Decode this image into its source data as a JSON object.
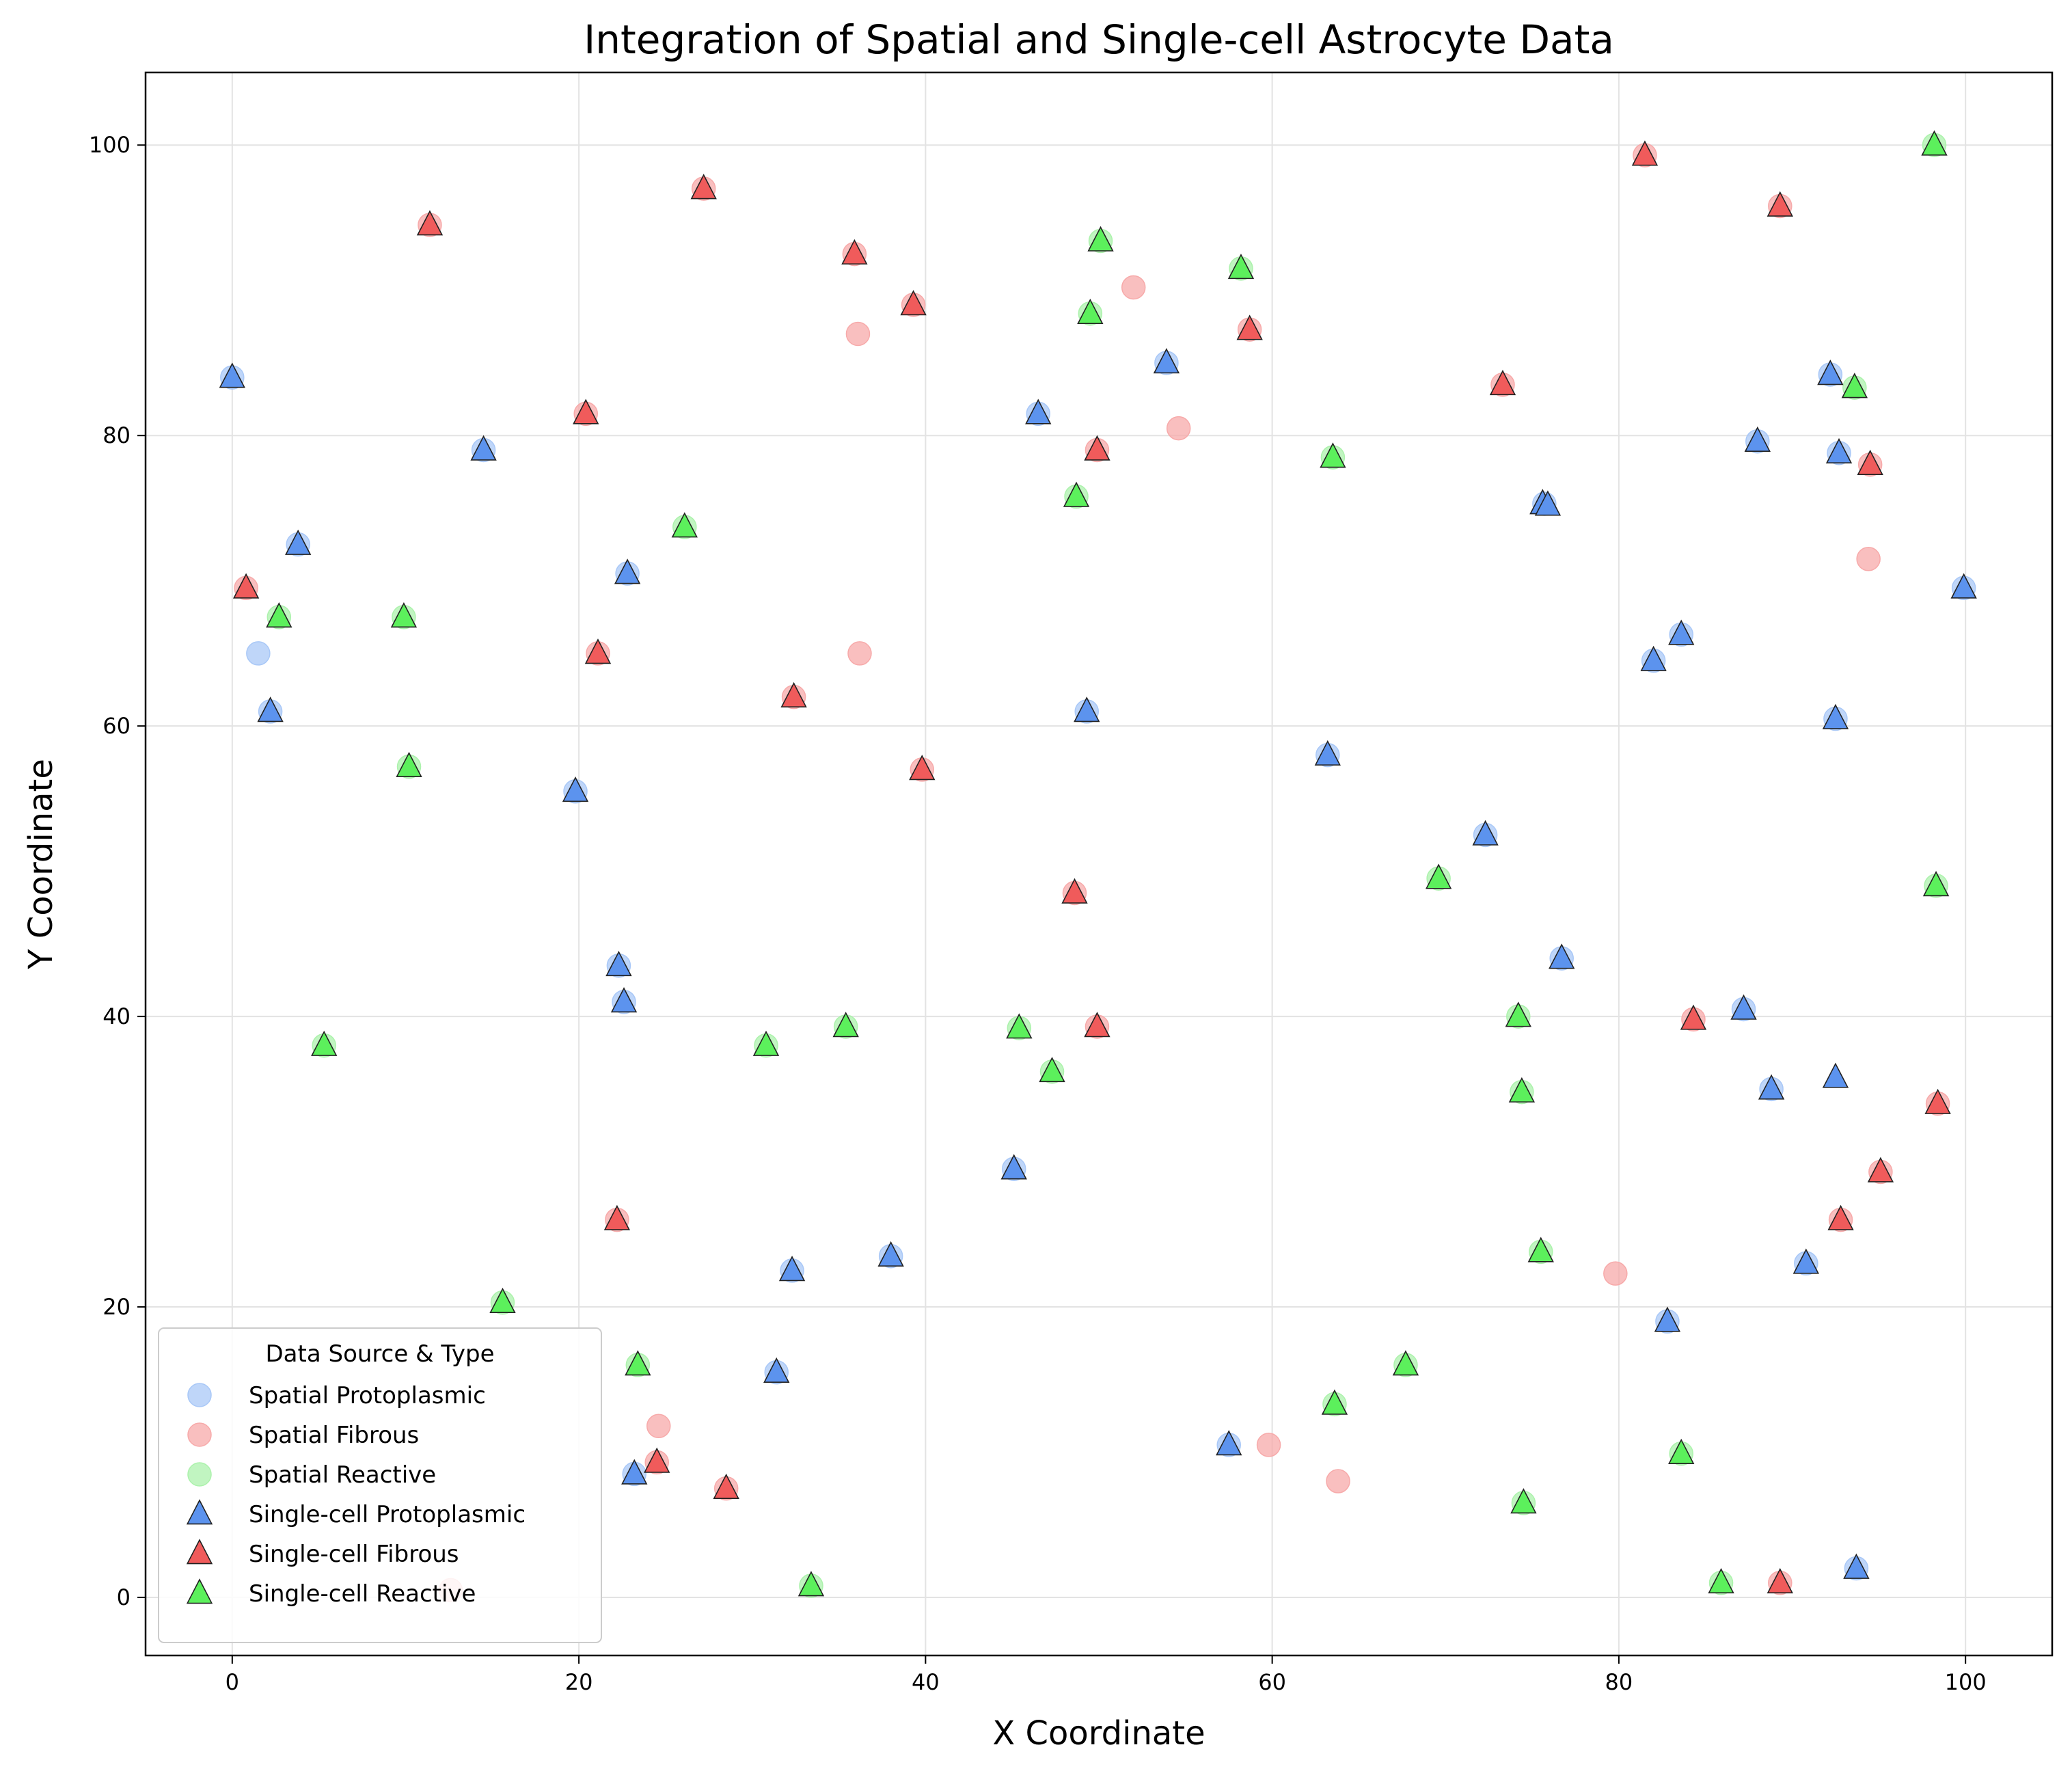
{
  "chart_data": {
    "type": "scatter",
    "title": "Integration of Spatial and Single-cell Astrocyte Data",
    "xlabel": "X Coordinate",
    "ylabel": "Y Coordinate",
    "xlim": [
      -5,
      105
    ],
    "ylim": [
      -4,
      105
    ],
    "xticks": [
      "0",
      "20",
      "40",
      "60",
      "80",
      "100"
    ],
    "yticks": [
      "0",
      "20",
      "40",
      "60",
      "80",
      "100"
    ],
    "grid": true,
    "legend": {
      "title": "Data Source & Type",
      "placement": "lower-left",
      "labels": [
        "Spatial Protoplasmic",
        "Spatial Fibrous",
        "Spatial Reactive",
        "Single-cell Protoplasmic",
        "Single-cell Fibrous",
        "Single-cell Reactive"
      ]
    },
    "series": [
      {
        "name": "Spatial Protoplasmic",
        "marker": "circle",
        "color": "#a9c8f7",
        "points": [
          [
            0,
            84
          ],
          [
            1.5,
            65
          ],
          [
            2.2,
            61
          ],
          [
            3.8,
            72.5
          ],
          [
            14.5,
            79
          ],
          [
            19.8,
            55.5
          ],
          [
            22.3,
            43.5
          ],
          [
            22.6,
            41
          ],
          [
            22.8,
            70.5
          ],
          [
            23.2,
            8.5
          ],
          [
            31.4,
            15.5
          ],
          [
            32.3,
            22.5
          ],
          [
            38,
            23.5
          ],
          [
            45.1,
            29.5
          ],
          [
            46.5,
            81.5
          ],
          [
            49.3,
            61
          ],
          [
            53.9,
            85
          ],
          [
            57.5,
            10.5
          ],
          [
            63.2,
            58
          ],
          [
            72.3,
            52.5
          ],
          [
            75.7,
            75.3
          ],
          [
            76.7,
            44
          ],
          [
            82,
            64.5
          ],
          [
            82.8,
            19
          ],
          [
            83.6,
            66.3
          ],
          [
            87.2,
            40.5
          ],
          [
            88,
            79.6
          ],
          [
            88.8,
            35
          ],
          [
            90.8,
            23
          ],
          [
            92.2,
            84.2
          ],
          [
            92.5,
            60.5
          ],
          [
            92.7,
            78.8
          ],
          [
            93.7,
            2
          ],
          [
            99.9,
            69.5
          ]
        ]
      },
      {
        "name": "Spatial Fibrous",
        "marker": "circle",
        "color": "#f7aaaa",
        "points": [
          [
            0.8,
            69.5
          ],
          [
            11.4,
            94.5
          ],
          [
            12.6,
            0.5
          ],
          [
            20.4,
            81.5
          ],
          [
            21.1,
            65
          ],
          [
            22.2,
            26
          ],
          [
            24.6,
            11.8
          ],
          [
            24.5,
            9.3
          ],
          [
            27.2,
            97
          ],
          [
            28.5,
            7.5
          ],
          [
            32.4,
            62
          ],
          [
            35.9,
            92.5
          ],
          [
            36.1,
            87
          ],
          [
            36.2,
            65
          ],
          [
            39.3,
            89
          ],
          [
            39.8,
            57
          ],
          [
            48.6,
            48.5
          ],
          [
            49.9,
            39.3
          ],
          [
            49.9,
            79
          ],
          [
            52,
            90.2
          ],
          [
            54.6,
            80.5
          ],
          [
            58.7,
            87.3
          ],
          [
            59.8,
            10.5
          ],
          [
            63.8,
            8
          ],
          [
            73.3,
            83.5
          ],
          [
            79.8,
            22.3
          ],
          [
            81.5,
            99.3
          ],
          [
            84.3,
            39.8
          ],
          [
            89.3,
            95.8
          ],
          [
            89.3,
            1
          ],
          [
            92.8,
            26
          ],
          [
            94.4,
            71.5
          ],
          [
            94.5,
            78
          ],
          [
            95.1,
            29.3
          ],
          [
            98.4,
            34
          ]
        ]
      },
      {
        "name": "Spatial Reactive",
        "marker": "circle",
        "color": "#acf2ac",
        "points": [
          [
            2.7,
            67.5
          ],
          [
            5.3,
            38
          ],
          [
            9.9,
            67.5
          ],
          [
            10.2,
            57.2
          ],
          [
            15.6,
            20.3
          ],
          [
            23.4,
            16
          ],
          [
            26.1,
            73.7
          ],
          [
            30.8,
            38
          ],
          [
            33.4,
            0.8
          ],
          [
            35.4,
            39.3
          ],
          [
            45.4,
            39.2
          ],
          [
            47.3,
            36.2
          ],
          [
            48.7,
            75.8
          ],
          [
            49.5,
            88.4
          ],
          [
            50.1,
            93.4
          ],
          [
            58.2,
            91.5
          ],
          [
            63.5,
            78.5
          ],
          [
            63.6,
            13.3
          ],
          [
            67.7,
            16
          ],
          [
            69.6,
            49.5
          ],
          [
            74.2,
            40
          ],
          [
            74.4,
            34.8
          ],
          [
            74.5,
            6.5
          ],
          [
            75.5,
            23.8
          ],
          [
            83.6,
            9.9
          ],
          [
            85.9,
            1
          ],
          [
            93.6,
            83.3
          ],
          [
            98.3,
            49
          ],
          [
            98.2,
            100
          ]
        ]
      },
      {
        "name": "Single-cell Protoplasmic",
        "marker": "triangle",
        "color": "#5c93ee",
        "points": [
          [
            0,
            84
          ],
          [
            2.2,
            61
          ],
          [
            3.8,
            72.5
          ],
          [
            14.5,
            79
          ],
          [
            19.8,
            55.5
          ],
          [
            22.3,
            43.5
          ],
          [
            22.6,
            41
          ],
          [
            22.8,
            70.5
          ],
          [
            23.2,
            8.5
          ],
          [
            31.4,
            15.5
          ],
          [
            32.3,
            22.5
          ],
          [
            38,
            23.5
          ],
          [
            45.1,
            29.5
          ],
          [
            46.5,
            81.5
          ],
          [
            49.3,
            61
          ],
          [
            53.9,
            85
          ],
          [
            57.5,
            10.5
          ],
          [
            63.2,
            58
          ],
          [
            72.3,
            52.5
          ],
          [
            75.6,
            75.3
          ],
          [
            75.9,
            75.2
          ],
          [
            76.7,
            44
          ],
          [
            82,
            64.5
          ],
          [
            82.8,
            19
          ],
          [
            83.6,
            66.3
          ],
          [
            87.2,
            40.5
          ],
          [
            88,
            79.6
          ],
          [
            88.8,
            35
          ],
          [
            90.8,
            23
          ],
          [
            92.2,
            84.2
          ],
          [
            92.5,
            60.5
          ],
          [
            92.5,
            35.8
          ],
          [
            92.7,
            78.8
          ],
          [
            93.7,
            2
          ],
          [
            99.9,
            69.5
          ]
        ]
      },
      {
        "name": "Single-cell Fibrous",
        "marker": "triangle",
        "color": "#f05b5b",
        "points": [
          [
            0.8,
            69.5
          ],
          [
            11.4,
            94.5
          ],
          [
            20.4,
            81.5
          ],
          [
            21.1,
            65
          ],
          [
            22.2,
            26
          ],
          [
            24.5,
            9.3
          ],
          [
            27.2,
            97
          ],
          [
            28.5,
            7.5
          ],
          [
            32.4,
            62
          ],
          [
            35.9,
            92.5
          ],
          [
            39.3,
            89
          ],
          [
            39.8,
            57
          ],
          [
            48.6,
            48.5
          ],
          [
            49.9,
            39.3
          ],
          [
            49.9,
            79
          ],
          [
            58.7,
            87.3
          ],
          [
            73.3,
            83.5
          ],
          [
            81.5,
            99.3
          ],
          [
            84.3,
            39.8
          ],
          [
            89.3,
            95.8
          ],
          [
            89.3,
            1
          ],
          [
            92.8,
            26
          ],
          [
            94.5,
            78
          ],
          [
            95.1,
            29.3
          ],
          [
            98.4,
            34
          ]
        ]
      },
      {
        "name": "Single-cell Reactive",
        "marker": "triangle",
        "color": "#5cf05c",
        "points": [
          [
            2.7,
            67.5
          ],
          [
            5.3,
            38
          ],
          [
            9.9,
            67.5
          ],
          [
            10.2,
            57.2
          ],
          [
            15.6,
            20.3
          ],
          [
            23.4,
            16
          ],
          [
            26.1,
            73.7
          ],
          [
            30.8,
            38
          ],
          [
            33.4,
            0.8
          ],
          [
            35.4,
            39.3
          ],
          [
            45.4,
            39.2
          ],
          [
            47.3,
            36.2
          ],
          [
            48.7,
            75.8
          ],
          [
            49.5,
            88.4
          ],
          [
            50.1,
            93.4
          ],
          [
            58.2,
            91.5
          ],
          [
            63.5,
            78.5
          ],
          [
            63.6,
            13.3
          ],
          [
            67.7,
            16
          ],
          [
            69.6,
            49.5
          ],
          [
            74.2,
            40
          ],
          [
            74.4,
            34.8
          ],
          [
            74.5,
            6.5
          ],
          [
            75.5,
            23.8
          ],
          [
            83.6,
            9.9
          ],
          [
            85.9,
            1
          ],
          [
            93.6,
            83.3
          ],
          [
            98.3,
            49
          ],
          [
            98.2,
            100
          ]
        ]
      }
    ]
  }
}
